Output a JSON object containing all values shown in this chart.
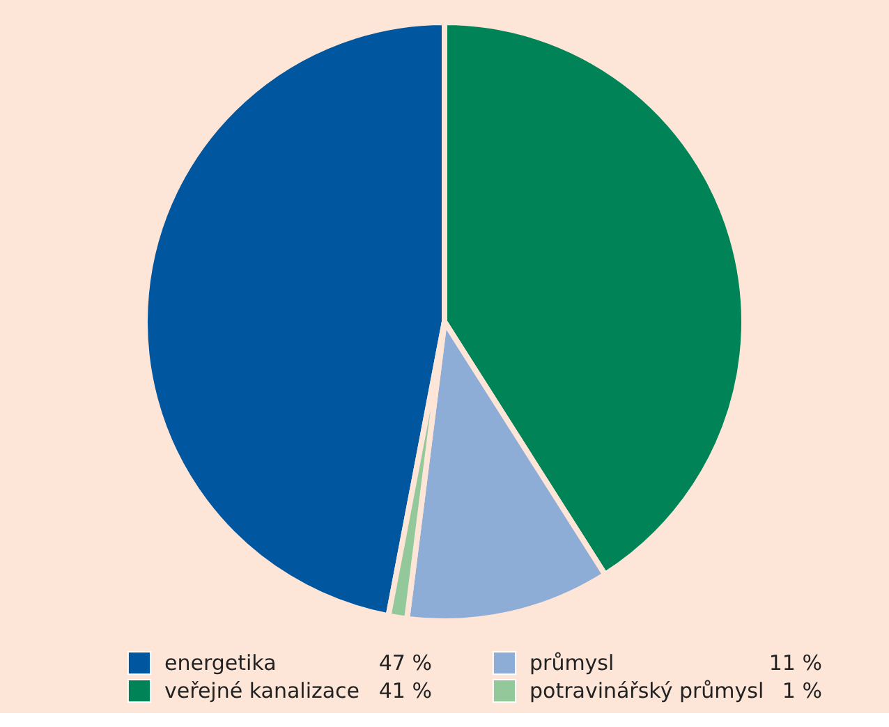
{
  "chart_data": {
    "type": "pie",
    "categories": [
      "energetika",
      "veřejné kanalizace",
      "průmysl",
      "potravinářský průmysl"
    ],
    "values": [
      47,
      41,
      11,
      1
    ],
    "colors": [
      "#0057a0",
      "#008356",
      "#8eadd6",
      "#93c99a"
    ],
    "value_labels": [
      "47 %",
      "41 %",
      "11 %",
      "1 %"
    ],
    "legend": "bottom"
  }
}
